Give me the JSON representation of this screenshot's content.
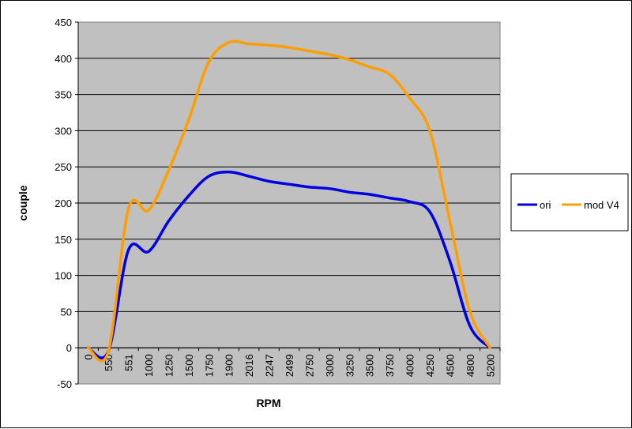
{
  "chart_data": {
    "type": "line",
    "xlabel": "RPM",
    "ylabel": "couple",
    "categories": [
      "0",
      "550",
      "551",
      "1000",
      "1250",
      "1500",
      "1750",
      "1900",
      "2016",
      "2247",
      "2499",
      "2750",
      "3000",
      "3250",
      "3500",
      "3750",
      "4000",
      "4250",
      "4500",
      "4800",
      "5200"
    ],
    "ylim": [
      -50,
      450
    ],
    "yticks": [
      -50,
      0,
      50,
      100,
      150,
      200,
      250,
      300,
      350,
      400,
      450
    ],
    "grid": "horizontal",
    "plot_background": "#c0c0c0",
    "legend_position": "right",
    "series": [
      {
        "name": "ori",
        "color": "#0000e0",
        "values": [
          0,
          -5,
          135,
          133,
          175,
          210,
          237,
          243,
          237,
          230,
          226,
          222,
          220,
          215,
          212,
          207,
          202,
          188,
          120,
          30,
          0
        ]
      },
      {
        "name": "mod V4",
        "color": "#ff9e00",
        "values": [
          0,
          -5,
          192,
          190,
          245,
          315,
          395,
          422,
          420,
          418,
          415,
          410,
          405,
          398,
          388,
          378,
          345,
          300,
          175,
          50,
          0
        ]
      }
    ]
  }
}
